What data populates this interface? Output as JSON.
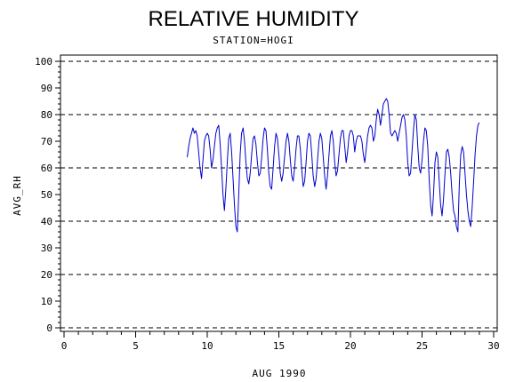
{
  "chart_data": {
    "type": "line",
    "title": "RELATIVE HUMIDITY",
    "subtitle": "STATION=HOGI",
    "xlabel": "AUG 1990",
    "ylabel": "AVG_RH",
    "xlim": [
      0,
      30
    ],
    "ylim": [
      0,
      100
    ],
    "x_ticks": [
      0,
      5,
      10,
      15,
      20,
      25,
      30
    ],
    "y_ticks": [
      0,
      10,
      20,
      30,
      40,
      50,
      60,
      70,
      80,
      90,
      100
    ],
    "grid_y": [
      0,
      20,
      40,
      60,
      80,
      100
    ],
    "grid_style": "dashed",
    "line_color": "#0000cc",
    "series": [
      {
        "values": [
          [
            8.6,
            64
          ],
          [
            8.7,
            68
          ],
          [
            8.8,
            71
          ],
          [
            8.9,
            73
          ],
          [
            9.0,
            75
          ],
          [
            9.1,
            73
          ],
          [
            9.2,
            74
          ],
          [
            9.3,
            72
          ],
          [
            9.4,
            66
          ],
          [
            9.5,
            60
          ],
          [
            9.6,
            56
          ],
          [
            9.7,
            63
          ],
          [
            9.8,
            70
          ],
          [
            9.9,
            72
          ],
          [
            10.0,
            73
          ],
          [
            10.1,
            72
          ],
          [
            10.2,
            67
          ],
          [
            10.3,
            60
          ],
          [
            10.4,
            63
          ],
          [
            10.5,
            68
          ],
          [
            10.6,
            73
          ],
          [
            10.7,
            75
          ],
          [
            10.8,
            76
          ],
          [
            10.9,
            69
          ],
          [
            11.0,
            60
          ],
          [
            11.1,
            50
          ],
          [
            11.2,
            44
          ],
          [
            11.3,
            52
          ],
          [
            11.4,
            62
          ],
          [
            11.5,
            71
          ],
          [
            11.6,
            73
          ],
          [
            11.7,
            66
          ],
          [
            11.8,
            56
          ],
          [
            11.9,
            46
          ],
          [
            12.0,
            38
          ],
          [
            12.1,
            36
          ],
          [
            12.2,
            50
          ],
          [
            12.3,
            65
          ],
          [
            12.4,
            73
          ],
          [
            12.5,
            75
          ],
          [
            12.6,
            70
          ],
          [
            12.7,
            62
          ],
          [
            12.8,
            56
          ],
          [
            12.9,
            54
          ],
          [
            13.0,
            58
          ],
          [
            13.1,
            65
          ],
          [
            13.2,
            71
          ],
          [
            13.3,
            72
          ],
          [
            13.4,
            69
          ],
          [
            13.5,
            62
          ],
          [
            13.6,
            57
          ],
          [
            13.7,
            58
          ],
          [
            13.8,
            64
          ],
          [
            13.9,
            71
          ],
          [
            14.0,
            75
          ],
          [
            14.1,
            74
          ],
          [
            14.2,
            67
          ],
          [
            14.3,
            58
          ],
          [
            14.4,
            53
          ],
          [
            14.5,
            52
          ],
          [
            14.6,
            60
          ],
          [
            14.7,
            68
          ],
          [
            14.8,
            73
          ],
          [
            14.9,
            71
          ],
          [
            15.0,
            65
          ],
          [
            15.1,
            58
          ],
          [
            15.2,
            55
          ],
          [
            15.3,
            58
          ],
          [
            15.4,
            64
          ],
          [
            15.5,
            70
          ],
          [
            15.6,
            73
          ],
          [
            15.7,
            70
          ],
          [
            15.8,
            63
          ],
          [
            15.9,
            57
          ],
          [
            16.0,
            55
          ],
          [
            16.1,
            60
          ],
          [
            16.2,
            67
          ],
          [
            16.3,
            72
          ],
          [
            16.4,
            72
          ],
          [
            16.5,
            67
          ],
          [
            16.6,
            59
          ],
          [
            16.7,
            53
          ],
          [
            16.8,
            55
          ],
          [
            16.9,
            62
          ],
          [
            17.0,
            70
          ],
          [
            17.1,
            73
          ],
          [
            17.2,
            72
          ],
          [
            17.3,
            65
          ],
          [
            17.4,
            57
          ],
          [
            17.5,
            53
          ],
          [
            17.6,
            56
          ],
          [
            17.7,
            63
          ],
          [
            17.8,
            70
          ],
          [
            17.9,
            73
          ],
          [
            18.0,
            71
          ],
          [
            18.1,
            64
          ],
          [
            18.2,
            57
          ],
          [
            18.3,
            52
          ],
          [
            18.4,
            57
          ],
          [
            18.5,
            65
          ],
          [
            18.6,
            72
          ],
          [
            18.7,
            74
          ],
          [
            18.8,
            70
          ],
          [
            18.9,
            62
          ],
          [
            19.0,
            57
          ],
          [
            19.1,
            59
          ],
          [
            19.2,
            65
          ],
          [
            19.3,
            71
          ],
          [
            19.4,
            74
          ],
          [
            19.5,
            74
          ],
          [
            19.6,
            68
          ],
          [
            19.7,
            62
          ],
          [
            19.8,
            66
          ],
          [
            19.9,
            72
          ],
          [
            20.0,
            74
          ],
          [
            20.1,
            74
          ],
          [
            20.2,
            72
          ],
          [
            20.3,
            66
          ],
          [
            20.4,
            70
          ],
          [
            20.5,
            72
          ],
          [
            20.6,
            72
          ],
          [
            20.7,
            72
          ],
          [
            20.8,
            70
          ],
          [
            20.9,
            65
          ],
          [
            21.0,
            62
          ],
          [
            21.1,
            67
          ],
          [
            21.2,
            72
          ],
          [
            21.3,
            75
          ],
          [
            21.4,
            76
          ],
          [
            21.5,
            75
          ],
          [
            21.6,
            70
          ],
          [
            21.7,
            72
          ],
          [
            21.8,
            78
          ],
          [
            21.9,
            82
          ],
          [
            22.0,
            80
          ],
          [
            22.1,
            76
          ],
          [
            22.2,
            80
          ],
          [
            22.3,
            84
          ],
          [
            22.4,
            85
          ],
          [
            22.5,
            86
          ],
          [
            22.6,
            85
          ],
          [
            22.7,
            80
          ],
          [
            22.8,
            73
          ],
          [
            22.9,
            72
          ],
          [
            23.0,
            73
          ],
          [
            23.1,
            74
          ],
          [
            23.2,
            73
          ],
          [
            23.3,
            70
          ],
          [
            23.4,
            73
          ],
          [
            23.5,
            76
          ],
          [
            23.6,
            79
          ],
          [
            23.7,
            80
          ],
          [
            23.8,
            78
          ],
          [
            23.9,
            72
          ],
          [
            24.0,
            62
          ],
          [
            24.1,
            57
          ],
          [
            24.2,
            58
          ],
          [
            24.3,
            66
          ],
          [
            24.4,
            74
          ],
          [
            24.5,
            80
          ],
          [
            24.6,
            78
          ],
          [
            24.7,
            68
          ],
          [
            24.8,
            60
          ],
          [
            24.9,
            58
          ],
          [
            25.0,
            63
          ],
          [
            25.1,
            70
          ],
          [
            25.2,
            75
          ],
          [
            25.3,
            74
          ],
          [
            25.4,
            68
          ],
          [
            25.5,
            55
          ],
          [
            25.6,
            46
          ],
          [
            25.7,
            42
          ],
          [
            25.8,
            50
          ],
          [
            25.9,
            62
          ],
          [
            26.0,
            66
          ],
          [
            26.1,
            64
          ],
          [
            26.2,
            55
          ],
          [
            26.3,
            46
          ],
          [
            26.4,
            42
          ],
          [
            26.5,
            48
          ],
          [
            26.6,
            58
          ],
          [
            26.7,
            66
          ],
          [
            26.8,
            67
          ],
          [
            26.9,
            64
          ],
          [
            27.0,
            58
          ],
          [
            27.1,
            50
          ],
          [
            27.2,
            44
          ],
          [
            27.3,
            42
          ],
          [
            27.4,
            38
          ],
          [
            27.5,
            36
          ],
          [
            27.6,
            54
          ],
          [
            27.7,
            65
          ],
          [
            27.8,
            68
          ],
          [
            27.9,
            66
          ],
          [
            28.0,
            58
          ],
          [
            28.1,
            50
          ],
          [
            28.2,
            44
          ],
          [
            28.3,
            40
          ],
          [
            28.4,
            38
          ],
          [
            28.5,
            45
          ],
          [
            28.6,
            55
          ],
          [
            28.7,
            65
          ],
          [
            28.8,
            72
          ],
          [
            28.9,
            76
          ],
          [
            29.0,
            77
          ]
        ]
      }
    ]
  }
}
